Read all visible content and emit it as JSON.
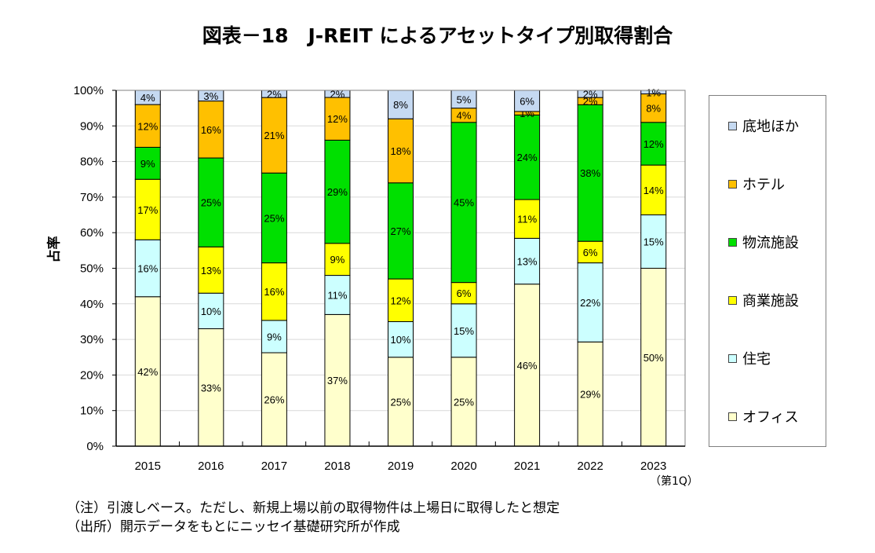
{
  "title": "図表－18　J-REIT によるアセットタイプ別取得割合",
  "chart_data": {
    "type": "bar",
    "stacked": true,
    "title": "図表－18　J-REIT によるアセットタイプ別取得割合",
    "xlabel": "",
    "ylabel": "占率",
    "ylim": [
      0,
      100
    ],
    "yticks": [
      "0%",
      "10%",
      "20%",
      "30%",
      "40%",
      "50%",
      "60%",
      "70%",
      "80%",
      "90%",
      "100%"
    ],
    "grid": true,
    "legend_position": "right",
    "categories": [
      "2015",
      "2016",
      "2017",
      "2018",
      "2019",
      "2020",
      "2021",
      "2022",
      "2023"
    ],
    "category_note": "（第1Q）",
    "series": [
      {
        "name": "オフィス",
        "color": "#FFFFCC",
        "values": [
          42,
          33,
          26,
          37,
          25,
          25,
          46,
          29,
          50
        ]
      },
      {
        "name": "住宅",
        "color": "#CCFFFF",
        "values": [
          16,
          10,
          9,
          11,
          10,
          15,
          13,
          22,
          15
        ]
      },
      {
        "name": "商業施設",
        "color": "#FFFF00",
        "values": [
          17,
          13,
          16,
          9,
          12,
          6,
          11,
          6,
          14
        ]
      },
      {
        "name": "物流施設",
        "color": "#00E000",
        "values": [
          9,
          25,
          25,
          29,
          27,
          45,
          24,
          38,
          12
        ]
      },
      {
        "name": "ホテル",
        "color": "#FFC000",
        "values": [
          12,
          16,
          21,
          12,
          18,
          4,
          1,
          2,
          8
        ]
      },
      {
        "name": "底地ほか",
        "color": "#C5D9F1",
        "values": [
          4,
          3,
          2,
          2,
          8,
          5,
          6,
          2,
          1
        ]
      }
    ]
  },
  "legend": [
    {
      "label": "底地ほか",
      "color": "#C5D9F1"
    },
    {
      "label": "ホテル",
      "color": "#FFC000"
    },
    {
      "label": "物流施設",
      "color": "#00E000"
    },
    {
      "label": "商業施設",
      "color": "#FFFF00"
    },
    {
      "label": "住宅",
      "color": "#CCFFFF"
    },
    {
      "label": "オフィス",
      "color": "#FFFFCC"
    }
  ],
  "notes": {
    "note": "（注）引渡しベース。ただし、新規上場以前の取得物件は上場日に取得したと想定",
    "source": "（出所）開示データをもとにニッセイ基礎研究所が作成"
  }
}
